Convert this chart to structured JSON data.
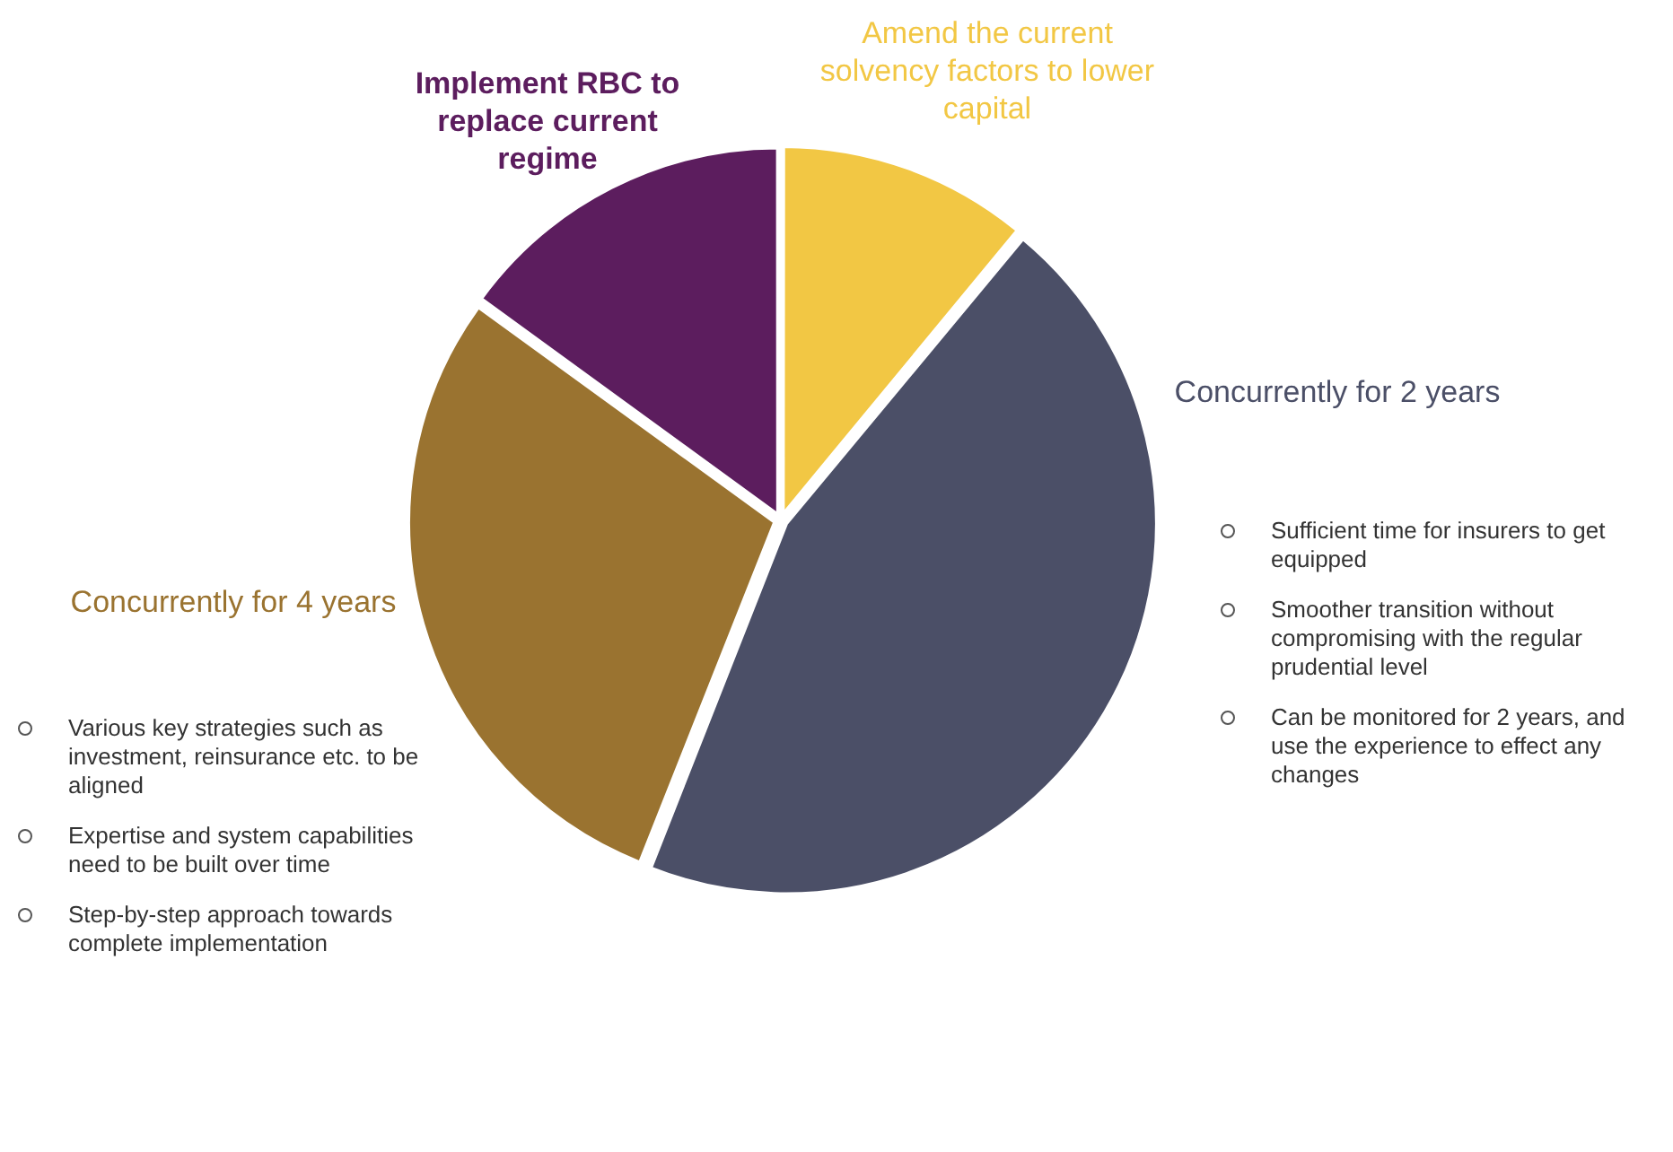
{
  "chart_data": {
    "type": "pie",
    "legend": false,
    "categories": [
      "Amend the current solvency factors to lower capital",
      "Concurrently for 2 years",
      "Concurrently for 4 years",
      "Implement RBC to replace current regime"
    ],
    "values": [
      11,
      45,
      29,
      15
    ],
    "colors": [
      "#f2c744",
      "#4b4f67",
      "#9a7330",
      "#5c1d5e"
    ],
    "annotations": [
      "Sufficient time for insurers to get equipped",
      "Smoother transition without compromising with the regular prudential level",
      "Can be monitored for 2 years, and use the experience to effect any changes",
      "Various key strategies such as investment, reinsurance etc. to be aligned",
      "Expertise and system capabilities need to be built over time",
      "Step-by-step approach towards complete implementation"
    ]
  }
}
